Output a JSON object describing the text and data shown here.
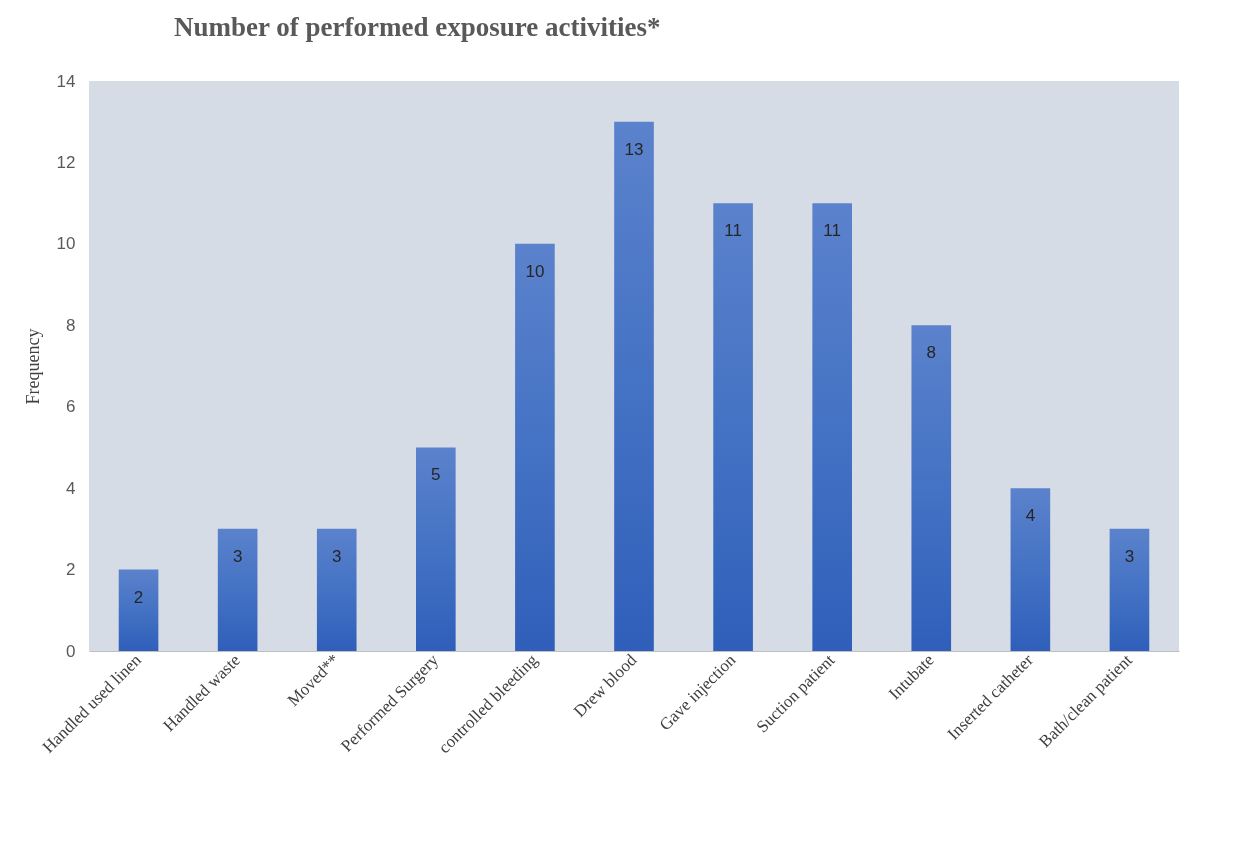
{
  "chart_data": {
    "type": "bar",
    "title": "Number of performed exposure activities*",
    "ylabel": "Frequency",
    "categories": [
      "Handled used linen",
      "Handled waste",
      "Moved**",
      "Performed Surgery",
      "controlled bleeding",
      "Drew blood",
      "Gave injection",
      "Suction patient",
      "Intubate",
      "Inserted catheter",
      "Bath/clean patient"
    ],
    "values": [
      2,
      3,
      3,
      5,
      10,
      13,
      11,
      11,
      8,
      4,
      3
    ],
    "color": "#4472c4",
    "ylim": [
      0,
      14
    ],
    "yticks": [
      0,
      2,
      4,
      6,
      8,
      10,
      12,
      14
    ],
    "grid": false,
    "data_labels": true
  }
}
